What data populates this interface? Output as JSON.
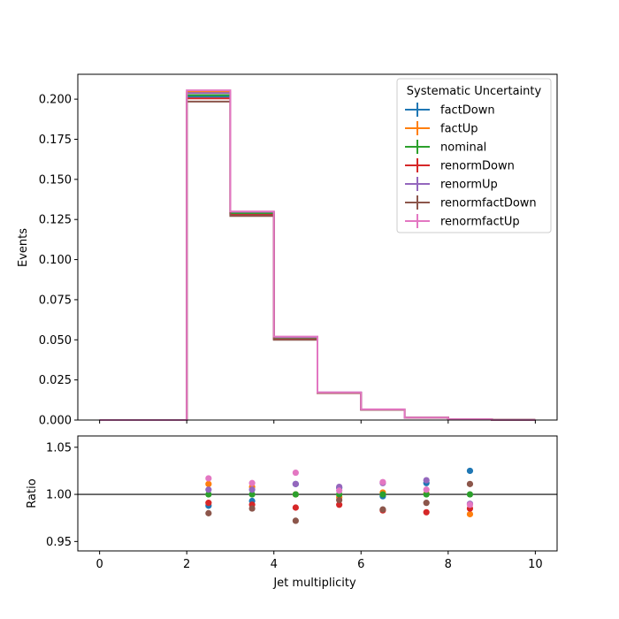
{
  "chart_data": {
    "type": "line",
    "x_edges": [
      0,
      1,
      2,
      3,
      4,
      5,
      6,
      7,
      8,
      9,
      10
    ],
    "xlabel": "Jet multiplicity",
    "xlim": [
      -0.5,
      10.5
    ],
    "x_ticks": [
      0,
      2,
      4,
      6,
      8,
      10
    ],
    "main": {
      "ylabel": "Events",
      "ylim": [
        0,
        0.2155
      ],
      "y_ticks": [
        0.0,
        0.025,
        0.05,
        0.075,
        0.1,
        0.125,
        0.15,
        0.175,
        0.2
      ],
      "y_tick_labels": [
        "0.000",
        "0.025",
        "0.050",
        "0.075",
        "0.100",
        "0.125",
        "0.150",
        "0.175",
        "0.200"
      ]
    },
    "ratio": {
      "ylabel": "Ratio",
      "ylim": [
        0.94,
        1.062
      ],
      "y_ticks": [
        0.95,
        1.0,
        1.05
      ],
      "y_tick_labels": [
        "0.95",
        "1.00",
        "1.05"
      ],
      "reference_line": 1.0,
      "x_centers": [
        2.5,
        3.5,
        4.5,
        5.5,
        6.5,
        7.5,
        8.5
      ]
    },
    "legend": {
      "title": "Systematic Uncertainty",
      "position": "upper right"
    },
    "series": [
      {
        "name": "factDown",
        "color": "#1f77b4",
        "values": [
          0,
          0,
          0.2015,
          0.1285,
          0.0508,
          0.017,
          0.0065,
          0.0015,
          0.0005,
          0.0001
        ],
        "ratio": [
          0.988,
          0.993,
          1.011,
          1.007,
          0.998,
          1.012,
          1.025
        ]
      },
      {
        "name": "factUp",
        "color": "#ff7f0e",
        "values": [
          0,
          0,
          0.2045,
          0.1295,
          0.0512,
          0.017,
          0.0066,
          0.0015,
          0.0005,
          0.0001
        ],
        "ratio": [
          1.011,
          1.008,
          1.0,
          0.997,
          1.002,
          1.001,
          0.979
        ]
      },
      {
        "name": "nominal",
        "color": "#2ca02c",
        "values": [
          0,
          0,
          0.2025,
          0.129,
          0.051,
          0.017,
          0.0066,
          0.0015,
          0.0005,
          0.0001
        ],
        "ratio": [
          1.0,
          1.0,
          1.0,
          1.0,
          1.0,
          1.0,
          1.0
        ]
      },
      {
        "name": "renormDown",
        "color": "#d62728",
        "values": [
          0,
          0,
          0.2005,
          0.1278,
          0.0503,
          0.0168,
          0.0065,
          0.0015,
          0.0005,
          0.0001
        ],
        "ratio": [
          0.991,
          0.989,
          0.986,
          0.989,
          0.983,
          0.981,
          0.985
        ]
      },
      {
        "name": "renormUp",
        "color": "#9467bd",
        "values": [
          0,
          0,
          0.2038,
          0.1298,
          0.0517,
          0.0172,
          0.0066,
          0.0015,
          0.0005,
          0.0001
        ],
        "ratio": [
          1.005,
          1.005,
          1.011,
          1.008,
          1.012,
          1.015,
          0.99
        ]
      },
      {
        "name": "renormfactDown",
        "color": "#8c564b",
        "values": [
          0,
          0,
          0.1985,
          0.1272,
          0.05,
          0.0169,
          0.0065,
          0.0015,
          0.0005,
          0.0001
        ],
        "ratio": [
          0.98,
          0.985,
          0.972,
          0.994,
          0.984,
          0.991,
          1.011
        ]
      },
      {
        "name": "renormfactUp",
        "color": "#e377c2",
        "values": [
          0,
          0,
          0.2055,
          0.13,
          0.052,
          0.0172,
          0.0067,
          0.0015,
          0.0005,
          0.0001
        ],
        "ratio": [
          1.017,
          1.012,
          1.023,
          1.004,
          1.013,
          1.005,
          0.989
        ]
      }
    ]
  }
}
